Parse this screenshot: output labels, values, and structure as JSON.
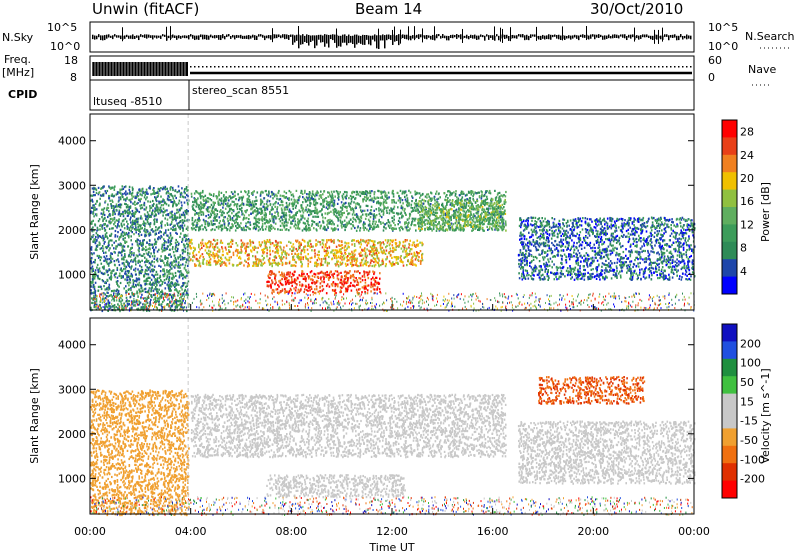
{
  "header": {
    "station": "Unwin (fitACF)",
    "beam": "Beam 14",
    "date": "30/Oct/2010"
  },
  "strips": {
    "nsky_label": "N.Sky",
    "nsky_ticks": [
      "10^5",
      "10^0"
    ],
    "nsearch_label": "N.Search",
    "freq_label_1": "Freq.",
    "freq_label_2": "[MHz]",
    "freq_ticks": [
      "18",
      "8"
    ],
    "nave_label": "Nave",
    "nave_ticks": [
      "60",
      "0"
    ],
    "cpid_label": "CPID",
    "cpid_segments": [
      "ltuseq -8510",
      "stereo_scan 8551"
    ]
  },
  "colors": {
    "power_scale": [
      "#0000ff",
      "#1e46aa",
      "#2e8b57",
      "#3c9c5a",
      "#5fae5f",
      "#90c040",
      "#f0c000",
      "#f08020",
      "#e84018",
      "#ff0000"
    ],
    "velocity_scale": [
      "#1010c0",
      "#2050e0",
      "#1f8f3f",
      "#40c040",
      "#c8c8c8",
      "#c8c8c8",
      "#f0a030",
      "#f07010",
      "#e03000",
      "#ff0000"
    ],
    "ground_scatter": "#b4b4b4"
  },
  "chart_data": [
    {
      "type": "heatmap",
      "name": "power",
      "ylabel": "Slant Range [km]",
      "yticks": [
        1000,
        2000,
        3000,
        4000
      ],
      "ylim": [
        200,
        4600
      ],
      "xlim_hours": [
        0,
        24
      ],
      "colorbar_label": "Power [dB]",
      "colorbar_ticks": [
        4,
        8,
        12,
        16,
        20,
        24,
        28
      ],
      "colorbar_range": [
        0,
        30
      ],
      "bands": [
        {
          "t0": 3.9,
          "t1": 13.2,
          "r0": 1200,
          "r1": 1800,
          "value": 20
        },
        {
          "t0": 7.0,
          "t1": 11.5,
          "r0": 600,
          "r1": 1100,
          "value": 26
        },
        {
          "t0": 4.0,
          "t1": 16.5,
          "r0": 2000,
          "r1": 2900,
          "value": 10
        },
        {
          "t0": 13.0,
          "t1": 16.5,
          "r0": 2000,
          "r1": 2700,
          "value": 14
        },
        {
          "t0": 17.0,
          "t1": 24.0,
          "r0": 900,
          "r1": 2300,
          "value": 6
        },
        {
          "t0": 0.0,
          "t1": 3.9,
          "r0": 200,
          "r1": 3000,
          "value": 8
        }
      ]
    },
    {
      "type": "heatmap",
      "name": "velocity",
      "ylabel": "Slant Range [km]",
      "yticks": [
        1000,
        2000,
        3000,
        4000
      ],
      "ylim": [
        200,
        4600
      ],
      "xlim_hours": [
        0,
        24
      ],
      "colorbar_label": "Velocity [m s^-1]",
      "colorbar_ticks": [
        200,
        100,
        50,
        15,
        -15,
        -50,
        -100,
        -200
      ],
      "colorbar_range": [
        -250,
        250
      ],
      "bands": [
        {
          "t0": 4.0,
          "t1": 16.5,
          "r0": 1500,
          "r1": 2900,
          "value": 0
        },
        {
          "t0": 7.0,
          "t1": 12.5,
          "r0": 600,
          "r1": 1100,
          "value": 30
        },
        {
          "t0": 17.0,
          "t1": 24.0,
          "r0": 900,
          "r1": 2300,
          "value": 0
        },
        {
          "t0": 17.8,
          "t1": 22.0,
          "r0": 2700,
          "r1": 3300,
          "value": -150
        },
        {
          "t0": 0.0,
          "t1": 3.9,
          "r0": 200,
          "r1": 3000,
          "value": -60
        }
      ]
    }
  ],
  "xaxis": {
    "label": "Time UT",
    "ticks": [
      "00:00",
      "04:00",
      "08:00",
      "12:00",
      "16:00",
      "20:00",
      "00:00"
    ],
    "tick_hours": [
      0,
      4,
      8,
      12,
      16,
      20,
      24
    ]
  }
}
